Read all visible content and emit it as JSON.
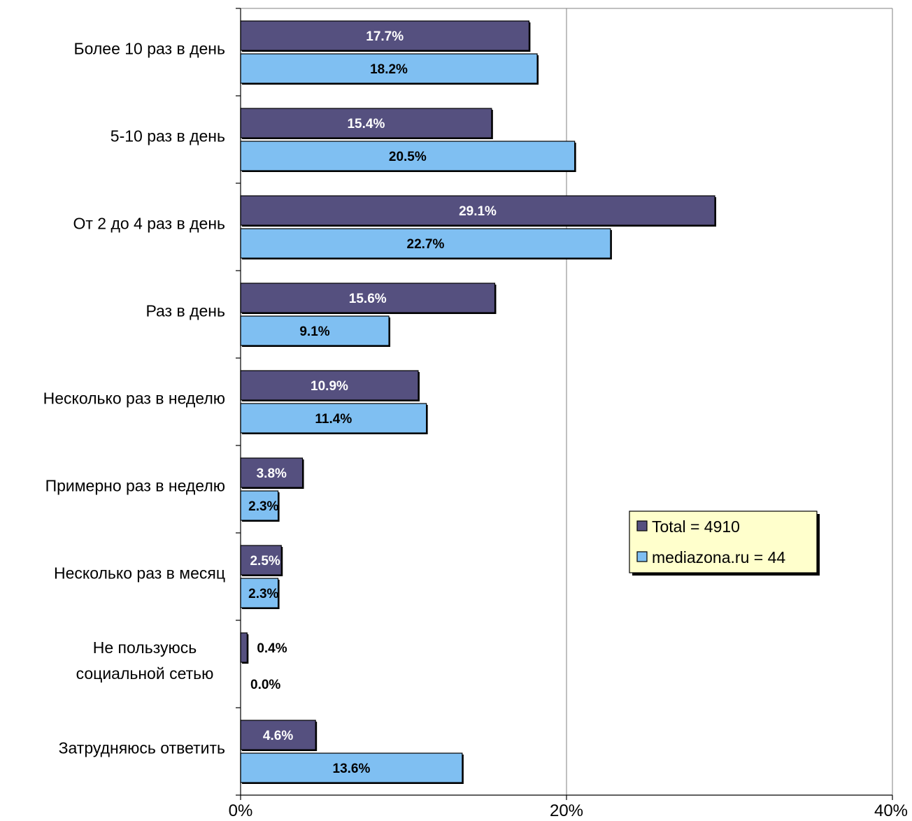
{
  "chart_data": {
    "type": "bar",
    "orientation": "horizontal",
    "categories": [
      [
        "Более 10 раз в день"
      ],
      [
        "5-10 раз в день"
      ],
      [
        "От 2 до 4 раз в день"
      ],
      [
        "Раз в день"
      ],
      [
        "Несколько раз в неделю"
      ],
      [
        "Примерно раз в неделю"
      ],
      [
        "Несколько раз в месяц"
      ],
      [
        "Не пользуюсь",
        "социальной сетью"
      ],
      [
        "Затрудняюсь ответить"
      ]
    ],
    "series": [
      {
        "name": "Total = 4910",
        "color": "#55507f",
        "label_color": "#ffffff",
        "values": [
          17.7,
          15.4,
          29.1,
          15.6,
          10.9,
          3.8,
          2.5,
          0.4,
          4.6
        ],
        "labels": [
          "17.7%",
          "15.4%",
          "29.1%",
          "15.6%",
          "10.9%",
          "3.8%",
          "2.5%",
          "0.4%",
          "4.6%"
        ]
      },
      {
        "name": "mediazona.ru = 44",
        "color": "#7fbff2",
        "label_color": "#000000",
        "values": [
          18.2,
          20.5,
          22.7,
          9.1,
          11.4,
          2.3,
          2.3,
          0.0,
          13.6
        ],
        "labels": [
          "18.2%",
          "20.5%",
          "22.7%",
          "9.1%",
          "11.4%",
          "2.3%",
          "2.3%",
          "0.0%",
          "13.6%"
        ]
      }
    ],
    "xlim": [
      0,
      40
    ],
    "x_ticks": [
      0,
      20,
      40
    ],
    "x_tick_labels": [
      "0%",
      "20%",
      "40%"
    ],
    "gridlines": "vertical",
    "legend": {
      "placement": "right",
      "background": "#ffffcc"
    },
    "title": "",
    "xlabel": "",
    "ylabel": ""
  }
}
